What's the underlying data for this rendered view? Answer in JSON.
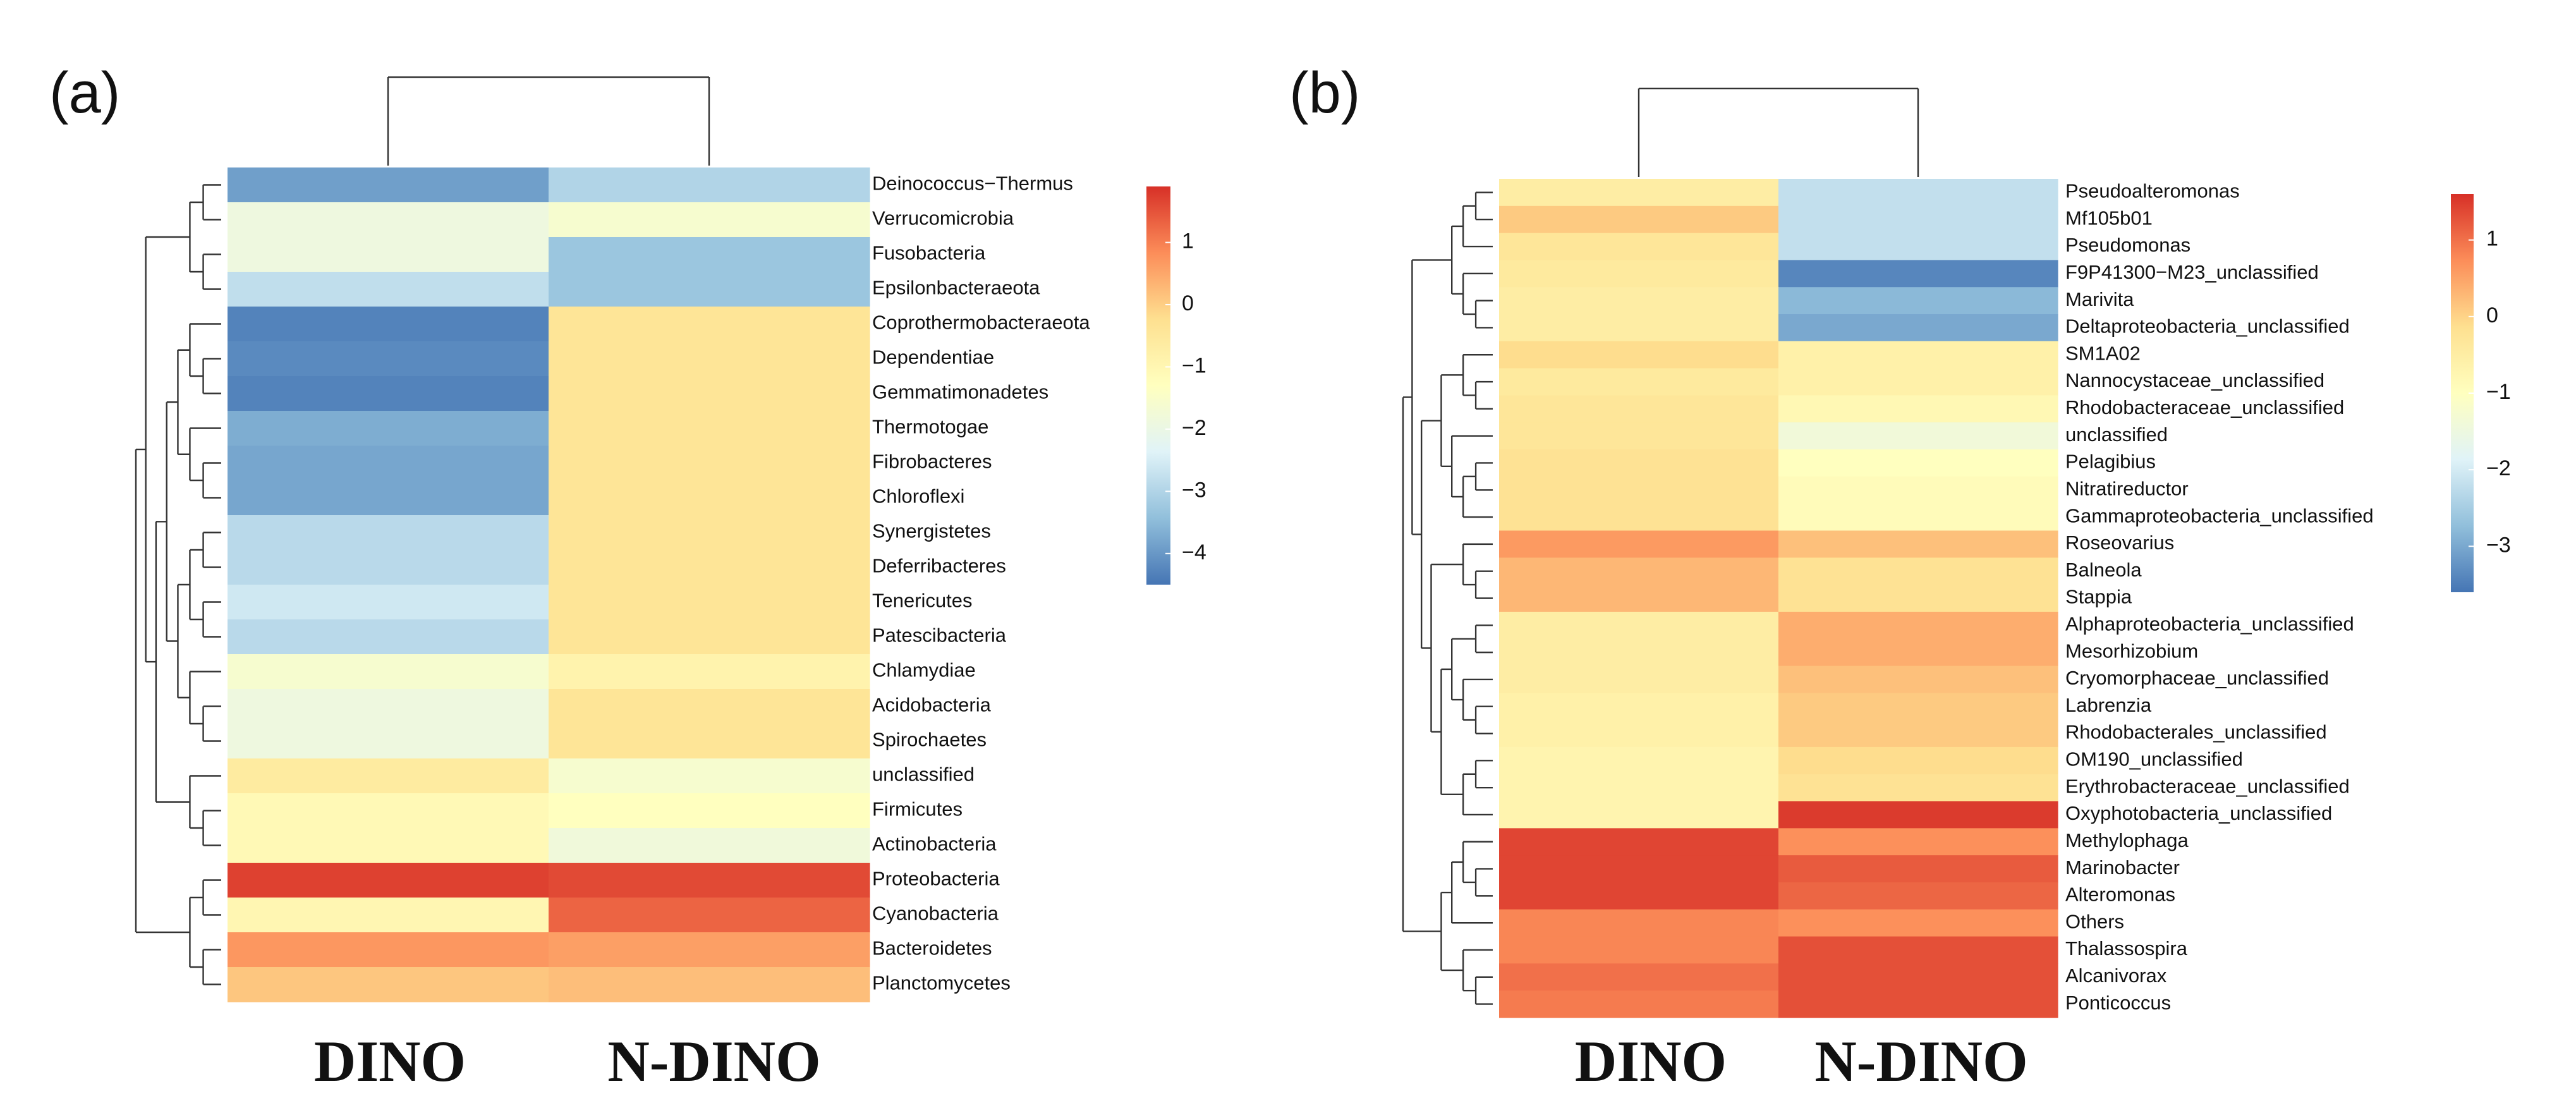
{
  "colormap": {
    "stops": [
      "#4575b4",
      "#91bfdb",
      "#e0f3f8",
      "#ffffbf",
      "#fee090",
      "#fc8d59",
      "#d73027"
    ],
    "low_color": "#4575b4",
    "high_color": "#d73027"
  },
  "chart_data": [
    {
      "type": "heatmap",
      "panel_label": "(a)",
      "columns": [
        "DINO",
        "N-DINO"
      ],
      "rows": [
        "Deinococcus−Thermus",
        "Verrucomicrobia",
        "Fusobacteria",
        "Epsilonbacteraeota",
        "Coprothermobacteraeota",
        "Dependentiae",
        "Gemmatimonadetes",
        "Thermotogae",
        "Fibrobacteres",
        "Chloroflexi",
        "Synergistetes",
        "Deferribacteres",
        "Tenericutes",
        "Patescibacteria",
        "Chlamydiae",
        "Acidobacteria",
        "Spirochaetes",
        "unclassified",
        "Firmicutes",
        "Actinobacteria",
        "Proteobacteria",
        "Cyanobacteria",
        "Bacteroidetes",
        "Planctomycetes"
      ],
      "values": [
        [
          -3.9,
          -3.0
        ],
        [
          -1.9,
          -1.6
        ],
        [
          -1.9,
          -3.3
        ],
        [
          -2.8,
          -3.3
        ],
        [
          -4.3,
          -0.4
        ],
        [
          -4.2,
          -0.4
        ],
        [
          -4.3,
          -0.4
        ],
        [
          -3.7,
          -0.4
        ],
        [
          -3.8,
          -0.4
        ],
        [
          -3.8,
          -0.4
        ],
        [
          -2.9,
          -0.4
        ],
        [
          -2.9,
          -0.4
        ],
        [
          -2.6,
          -0.4
        ],
        [
          -2.9,
          -0.4
        ],
        [
          -1.6,
          -0.9
        ],
        [
          -1.9,
          -0.4
        ],
        [
          -1.9,
          -0.4
        ],
        [
          -0.6,
          -1.6
        ],
        [
          -1.1,
          -1.3
        ],
        [
          -1.1,
          -1.8
        ],
        [
          1.7,
          1.6
        ],
        [
          -1.0,
          1.3
        ],
        [
          0.7,
          0.6
        ],
        [
          0.1,
          0.2
        ]
      ],
      "value_range": [
        -4.5,
        1.9
      ],
      "colorbar_ticks": [
        1,
        0,
        -1,
        -2,
        -3,
        -4
      ],
      "colorbar_tick_labels": [
        "1",
        "0",
        "−1",
        "−2",
        "−3",
        "−4"
      ]
    },
    {
      "type": "heatmap",
      "panel_label": "(b)",
      "columns": [
        "DINO",
        "N-DINO"
      ],
      "rows": [
        "Pseudoalteromonas",
        "Mf105b01",
        "Pseudomonas",
        "F9P41300−M23_unclassified",
        "Marivita",
        "Deltaproteobacteria_unclassified",
        "SM1A02",
        "Nannocystaceae_unclassified",
        "Rhodobacteraceae_unclassified",
        "unclassified",
        "Pelagibius",
        "Nitratireductor",
        "Gammaproteobacteria_unclassified",
        "Roseovarius",
        "Balneola",
        "Stappia",
        "Alphaproteobacteria_unclassified",
        "Mesorhizobium",
        "Cryomorphaceae_unclassified",
        "Labrenzia",
        "Rhodobacterales_unclassified",
        "OM190_unclassified",
        "Erythrobacteraceae_unclassified",
        "Oxyphotobacteria_unclassified",
        "Methylophaga",
        "Marinobacter",
        "Alteromonas",
        "Others",
        "Thalassospira",
        "Alcanivorax",
        "Ponticoccus"
      ],
      "values": [
        [
          -0.5,
          -2.2
        ],
        [
          0.1,
          -2.2
        ],
        [
          -0.3,
          -2.2
        ],
        [
          -0.4,
          -3.4
        ],
        [
          -0.5,
          -2.8
        ],
        [
          -0.5,
          -3.0
        ],
        [
          -0.1,
          -0.6
        ],
        [
          -0.4,
          -0.6
        ],
        [
          -0.3,
          -0.8
        ],
        [
          -0.3,
          -1.4
        ],
        [
          -0.2,
          -1.0
        ],
        [
          -0.2,
          -0.9
        ],
        [
          -0.2,
          -0.9
        ],
        [
          0.6,
          0.2
        ],
        [
          0.3,
          -0.2
        ],
        [
          0.3,
          -0.2
        ],
        [
          -0.5,
          0.4
        ],
        [
          -0.5,
          0.4
        ],
        [
          -0.5,
          0.2
        ],
        [
          -0.6,
          0.1
        ],
        [
          -0.6,
          0.1
        ],
        [
          -0.7,
          -0.1
        ],
        [
          -0.7,
          -0.2
        ],
        [
          -0.7,
          1.5
        ],
        [
          1.4,
          0.7
        ],
        [
          1.4,
          1.2
        ],
        [
          1.4,
          1.1
        ],
        [
          0.8,
          0.7
        ],
        [
          0.8,
          1.3
        ],
        [
          1.0,
          1.3
        ],
        [
          0.9,
          1.3
        ]
      ],
      "value_range": [
        -3.6,
        1.6
      ],
      "colorbar_ticks": [
        1,
        0,
        -1,
        -2,
        -3
      ],
      "colorbar_tick_labels": [
        "1",
        "0",
        "−1",
        "−2",
        "−3"
      ]
    }
  ]
}
